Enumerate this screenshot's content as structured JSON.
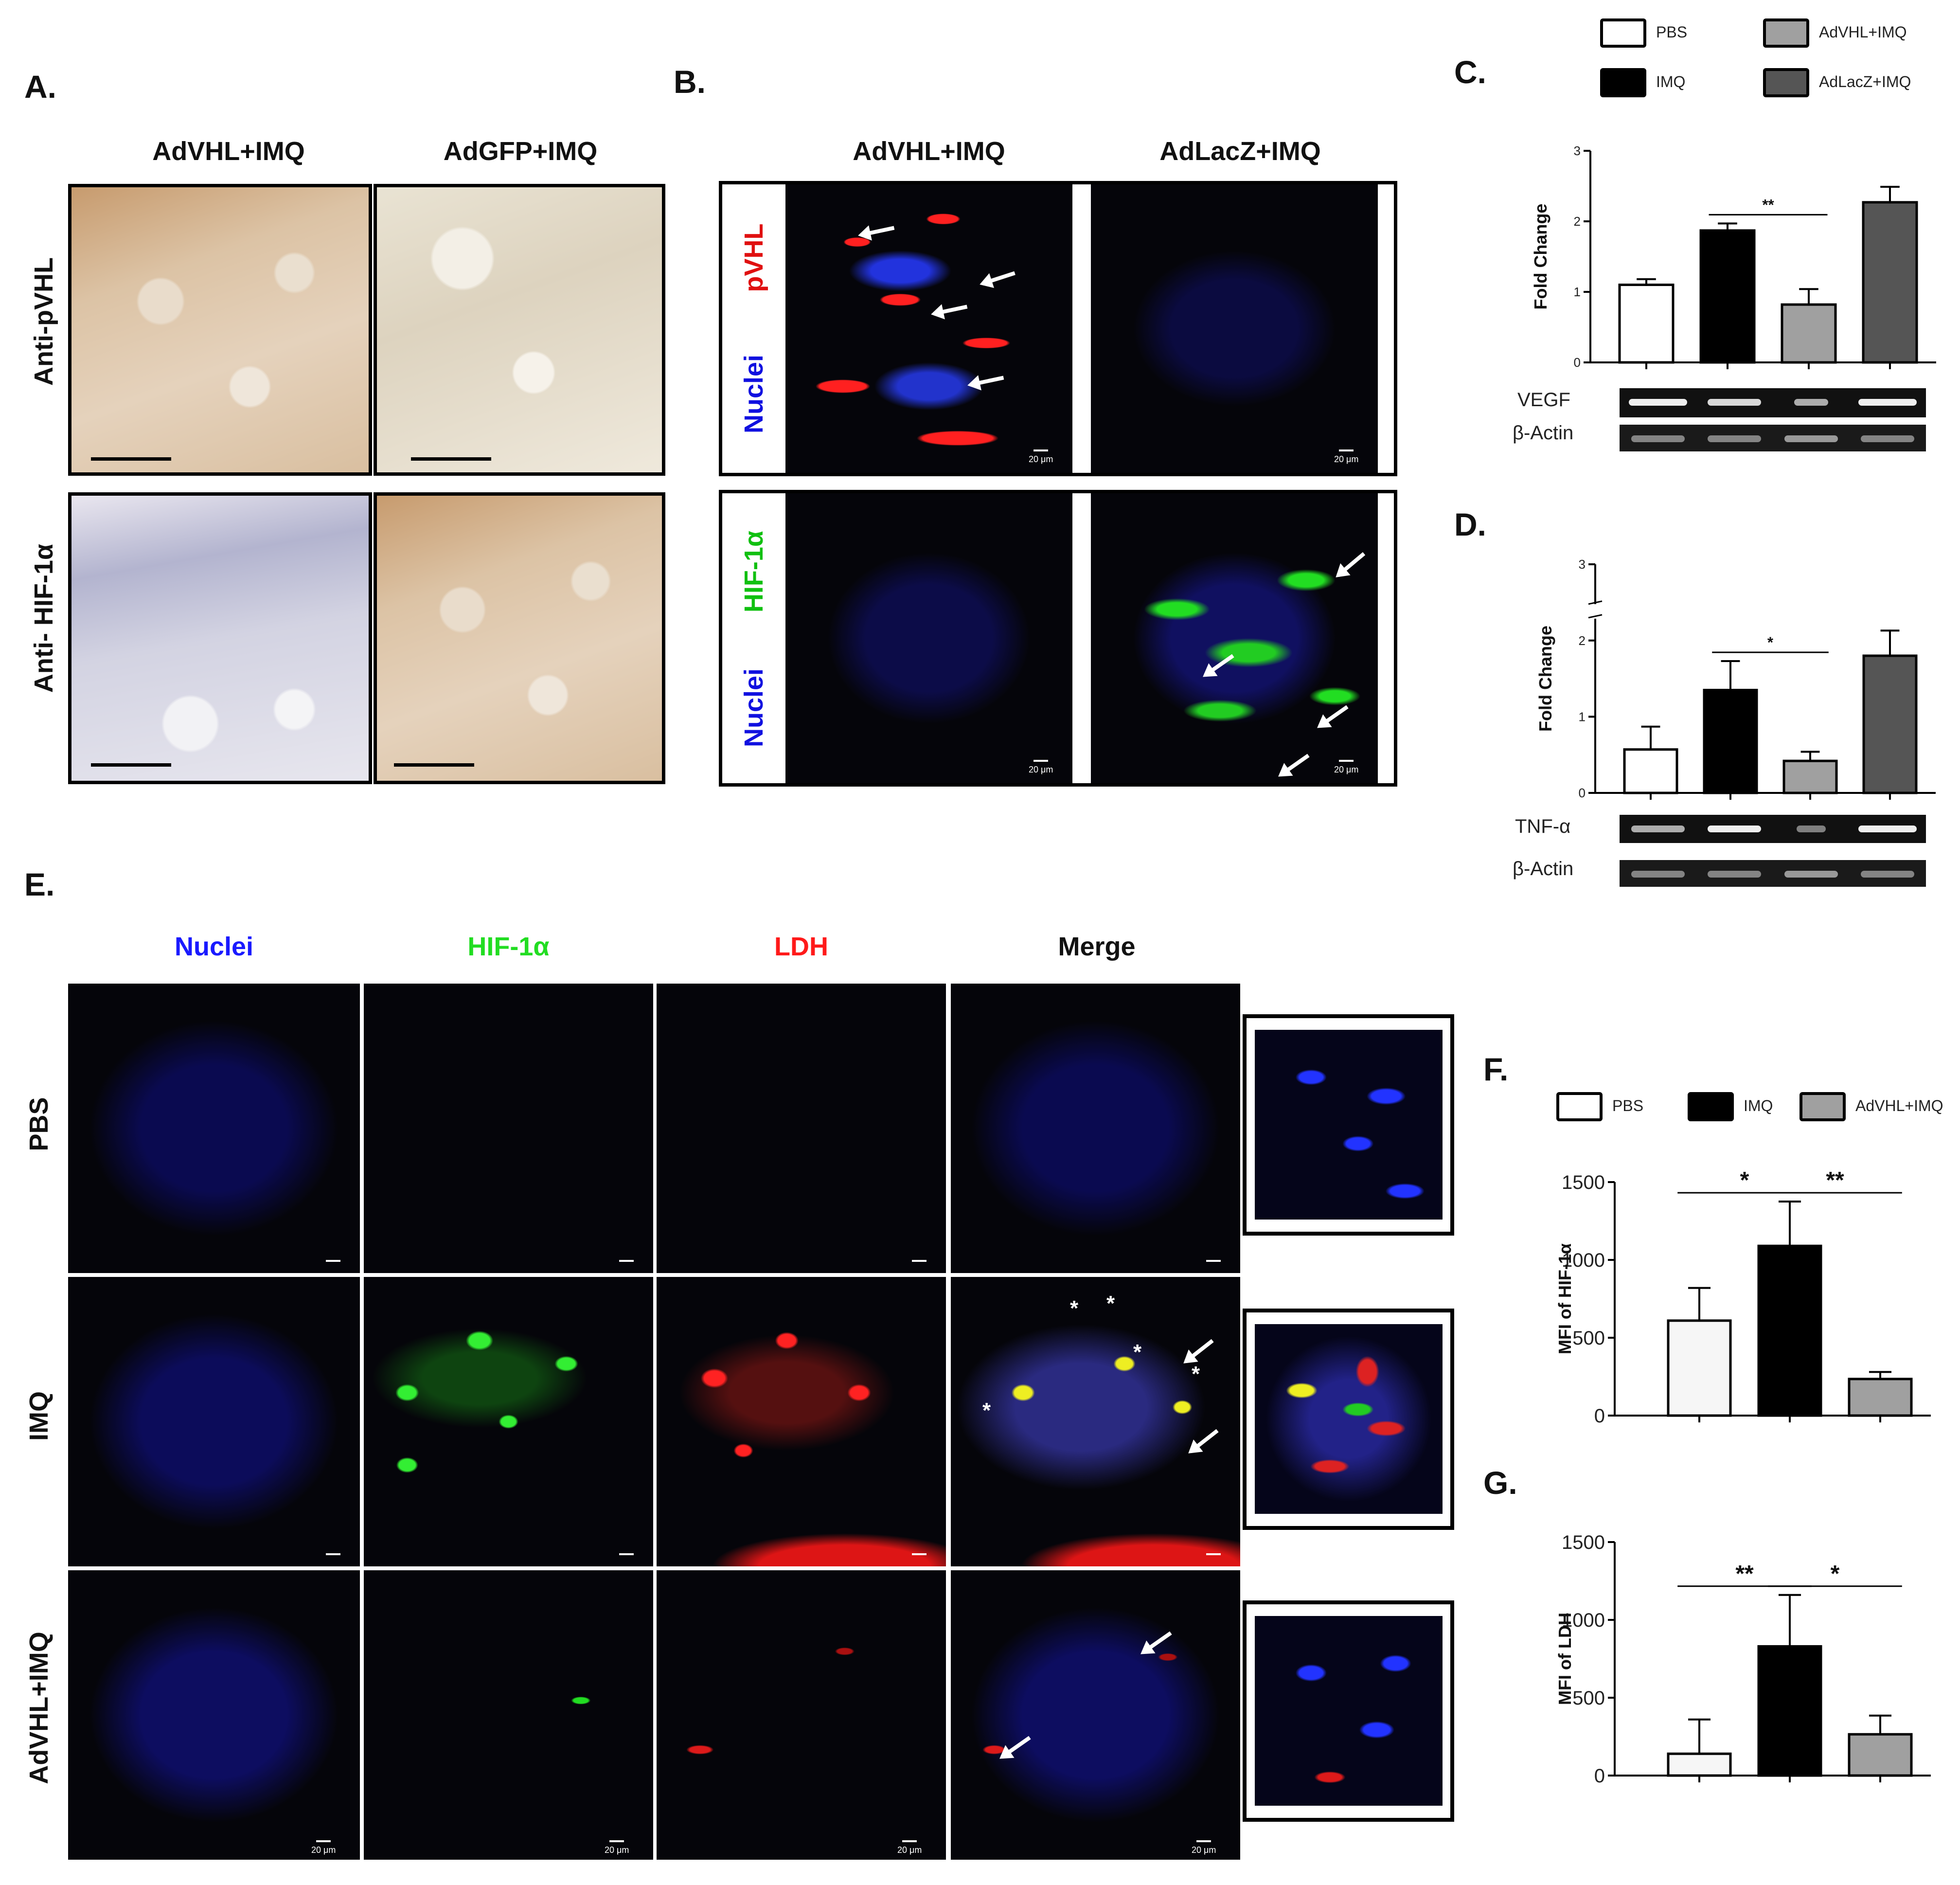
{
  "panel_labels": {
    "A": "A.",
    "B": "B.",
    "C": "C.",
    "D": "D.",
    "E": "E.",
    "F": "F.",
    "G": "G."
  },
  "panelA": {
    "col_headers": [
      "AdVHL+IMQ",
      "AdGFP+IMQ"
    ],
    "row_headers": [
      "Anti-pVHL",
      "Anti- HIF-1α"
    ]
  },
  "panelB": {
    "col_headers": [
      "AdVHL+IMQ",
      "AdLacZ+IMQ"
    ],
    "row1_labels": [
      "pVHL",
      "Nuclei"
    ],
    "row2_labels": [
      "HIF-1α",
      "Nuclei"
    ],
    "scale_text": "20 μm"
  },
  "legend_top": {
    "items": [
      {
        "label": "PBS",
        "color": "#ffffff"
      },
      {
        "label": "IMQ",
        "color": "#000000"
      },
      {
        "label": "AdVHL+IMQ",
        "color": "#a0a0a0"
      },
      {
        "label": "AdLacZ+IMQ",
        "color": "#555555"
      }
    ]
  },
  "panelE": {
    "col_headers": [
      "Nuclei",
      "HIF-1α",
      "LDH",
      "Merge"
    ],
    "col_colors": [
      "#1a1aff",
      "#22dd22",
      "#ff1a1a",
      "#111111"
    ],
    "row_headers": [
      "PBS",
      "IMQ",
      "AdVHL+IMQ"
    ],
    "scale_text": "20 μm"
  },
  "legend_F": {
    "items": [
      {
        "label": "PBS",
        "color": "#ffffff"
      },
      {
        "label": "IMQ",
        "color": "#000000"
      },
      {
        "label": "AdVHL+IMQ",
        "color": "#a0a0a0"
      }
    ]
  },
  "gels": {
    "C": [
      {
        "label": "VEGF"
      },
      {
        "label": "β-Actin"
      }
    ],
    "D": [
      {
        "label": "TNF-α"
      },
      {
        "label": "β-Actin"
      }
    ]
  },
  "chart_data": [
    {
      "id": "C",
      "type": "bar",
      "categories": [
        "PBS",
        "IMQ",
        "AdVHL+IMQ",
        "AdLacZ+IMQ"
      ],
      "values": [
        1.1,
        1.87,
        0.82,
        2.27
      ],
      "errors": [
        0.08,
        0.1,
        0.22,
        0.22
      ],
      "colors": [
        "#ffffff",
        "#000000",
        "#a0a0a0",
        "#555555"
      ],
      "ylabel": "Fold Change",
      "ylim": [
        0,
        3
      ],
      "yticks": [
        0,
        1,
        2,
        3
      ],
      "significance": [
        {
          "from": 1,
          "to": 2,
          "label": "**"
        }
      ]
    },
    {
      "id": "D",
      "type": "bar",
      "categories": [
        "PBS",
        "IMQ",
        "AdVHL+IMQ",
        "AdLacZ+IMQ"
      ],
      "values": [
        0.57,
        1.35,
        0.42,
        1.8
      ],
      "errors": [
        0.3,
        0.38,
        0.12,
        0.33
      ],
      "colors": [
        "#ffffff",
        "#000000",
        "#a0a0a0",
        "#555555"
      ],
      "ylabel": "Fold Change",
      "ylim": [
        0,
        3
      ],
      "yticks": [
        0,
        1,
        2,
        3
      ],
      "axis_break": true,
      "significance": [
        {
          "from": 1,
          "to": 2,
          "label": "*"
        }
      ]
    },
    {
      "id": "F",
      "type": "bar",
      "categories": [
        "PBS",
        "IMQ",
        "AdVHL+IMQ"
      ],
      "values": [
        610,
        1090,
        235
      ],
      "errors": [
        210,
        285,
        45
      ],
      "colors": [
        "#f6f6f6",
        "#000000",
        "#a0a0a0"
      ],
      "ylabel": "MFI of HIF-1α",
      "ylim": [
        0,
        1500
      ],
      "yticks": [
        0,
        500,
        1000,
        1500
      ],
      "significance": [
        {
          "from": 0,
          "to": 1,
          "label": "*"
        },
        {
          "from": 1,
          "to": 2,
          "label": "**"
        }
      ]
    },
    {
      "id": "G",
      "type": "bar",
      "categories": [
        "PBS",
        "IMQ",
        "AdVHL+IMQ"
      ],
      "values": [
        140,
        830,
        265
      ],
      "errors": [
        220,
        330,
        120
      ],
      "colors": [
        "#f6f6f6",
        "#000000",
        "#a0a0a0"
      ],
      "ylabel": "MFI of LDH",
      "ylim": [
        0,
        1500
      ],
      "yticks": [
        0,
        500,
        1000,
        1500
      ],
      "significance": [
        {
          "from": 0,
          "to": 1,
          "label": "**"
        },
        {
          "from": 1,
          "to": 2,
          "label": "*"
        }
      ]
    }
  ]
}
